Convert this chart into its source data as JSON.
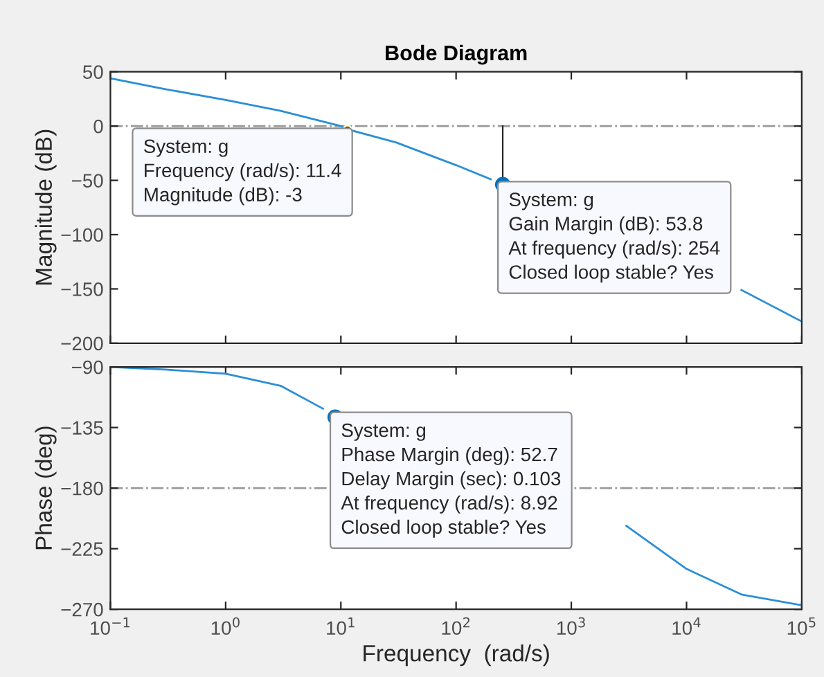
{
  "chart_data": [
    {
      "type": "line",
      "title": "Bode Diagram",
      "ylabel": "Magnitude (dB)",
      "log": "x",
      "grid": false,
      "tick_labels": "y",
      "x": [
        0.1,
        0.3,
        1,
        3,
        10,
        11.4,
        30,
        100,
        200,
        300,
        1000,
        3000,
        10000,
        30000,
        100000
      ],
      "series": [
        {
          "color": "#2b8fd6",
          "values": [
            44,
            34,
            24,
            14,
            0,
            -3,
            -15,
            -36,
            -49,
            null,
            null,
            null,
            null,
            -151,
            -180
          ]
        }
      ],
      "xlim": [
        0.1,
        100000
      ],
      "xticks": [
        {
          "value": 0.1,
          "label": null
        },
        {
          "value": 1,
          "label": null
        },
        {
          "value": 10,
          "label": null
        },
        {
          "value": 100,
          "label": null
        },
        {
          "value": 1000,
          "label": null
        },
        {
          "value": 10000,
          "label": null
        },
        {
          "value": 100000,
          "label": null
        }
      ],
      "ylim": [
        -200,
        50
      ],
      "yticks": [
        -200,
        -150,
        -100,
        -50,
        0,
        50
      ],
      "ref_lines": [
        {
          "axis": "y",
          "value": 0,
          "color": "#999999",
          "line_style": "dashdot"
        }
      ],
      "annotations": [
        {
          "text": "System: g\nFrequency (rad/s): 11.4\nMagnitude (dB): -3",
          "x": 11.4,
          "y": -3
        },
        {
          "text": "System: g\nGain Margin (dB): 53.8\nAt frequency (rad/s): 254\nClosed loop stable? Yes",
          "x": 254,
          "y": -53.8
        }
      ]
    },
    {
      "type": "line",
      "ylabel": "Phase (deg)",
      "xlabel": "Frequency  (rad/s)",
      "log": "x",
      "grid": false,
      "x": [
        0.1,
        0.3,
        1,
        3,
        7,
        10,
        30,
        100,
        300,
        1000,
        3000,
        10000,
        30000,
        100000
      ],
      "series": [
        {
          "color": "#2b8fd6",
          "values": [
            -90,
            -92,
            -95,
            -104,
            -121,
            null,
            null,
            null,
            null,
            null,
            -208,
            -240,
            -259,
            -267
          ]
        }
      ],
      "xlim": [
        0.1,
        100000
      ],
      "xticks": [
        {
          "value": 0.1,
          "label": "10$^{−1}$"
        },
        {
          "value": 1,
          "label": "10$^{0}$"
        },
        {
          "value": 10,
          "label": "10$^{1}$"
        },
        {
          "value": 100,
          "label": "10$^{2}$"
        },
        {
          "value": 1000,
          "label": "10$^{3}$"
        },
        {
          "value": 10000,
          "label": "10$^{4}$"
        },
        {
          "value": 100000,
          "label": "10$^{5}$"
        }
      ],
      "ylim": [
        -270,
        -90
      ],
      "yticks": [
        -270,
        -225,
        -180,
        -135,
        -90
      ],
      "ref_lines": [
        {
          "axis": "y",
          "value": -180,
          "color": "#999999",
          "line_style": "dashdot"
        }
      ],
      "annotations": [
        {
          "text": "System: g\nPhase Margin (deg): 52.7\nDelay Margin (sec): 0.103\nAt frequency (rad/s): 8.92\nClosed loop stable? Yes",
          "x": 8.92,
          "y": -127.3
        }
      ]
    }
  ]
}
